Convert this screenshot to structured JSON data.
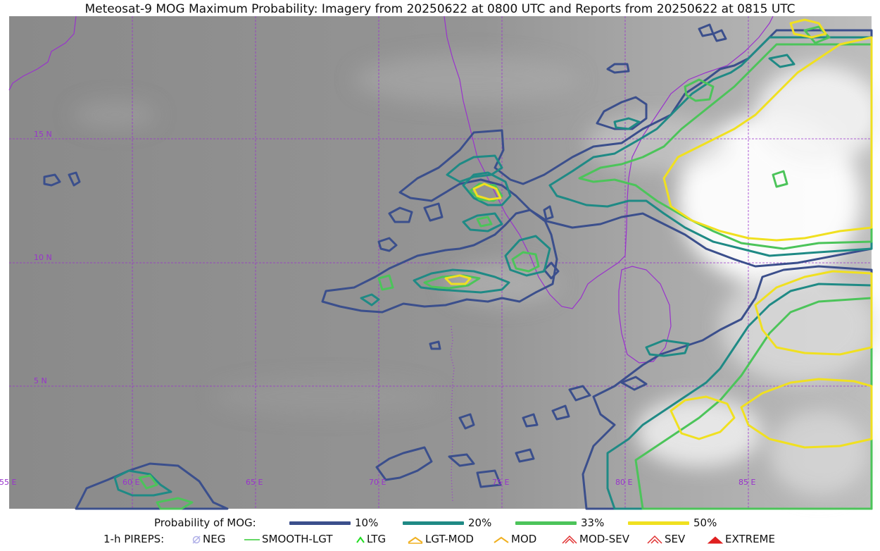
{
  "title": "Meteosat-9 MOG Maximum Probability: Imagery from 20250622 at 0800 UTC and Reports from 20250622 at 0815 UTC",
  "map": {
    "lat_labels": [
      "15 N",
      "10 N",
      "5 N"
    ],
    "lon_labels": [
      "55 E",
      "60 E",
      "65 E",
      "70 E",
      "75 E",
      "80 E",
      "85 E"
    ],
    "grid_color": "#9933cc",
    "coast_color": "#9933cc"
  },
  "legend": {
    "probability_label": "Probability of MOG:",
    "levels": [
      {
        "label": "10%",
        "color": "#3b4f8c"
      },
      {
        "label": "20%",
        "color": "#1f8a85"
      },
      {
        "label": "33%",
        "color": "#4cc45a"
      },
      {
        "label": "50%",
        "color": "#f0e020"
      }
    ],
    "pireps_label": "1-h PIREPS:",
    "pireps": [
      {
        "label": "NEG",
        "icon": "neg-icon",
        "color": "#b0b0e8"
      },
      {
        "label": "SMOOTH-LGT",
        "icon": "smooth-lgt-icon",
        "color": "#33cc33"
      },
      {
        "label": "LTG",
        "icon": "ltg-icon",
        "color": "#22dd22"
      },
      {
        "label": "LGT-MOD",
        "icon": "lgt-mod-icon",
        "color": "#f0b020"
      },
      {
        "label": "MOD",
        "icon": "mod-icon",
        "color": "#f0b020"
      },
      {
        "label": "MOD-SEV",
        "icon": "mod-sev-icon",
        "color": "#e03030"
      },
      {
        "label": "SEV",
        "icon": "sev-icon",
        "color": "#e03030"
      },
      {
        "label": "EXTREME",
        "icon": "extreme-icon",
        "color": "#e02020"
      }
    ]
  }
}
